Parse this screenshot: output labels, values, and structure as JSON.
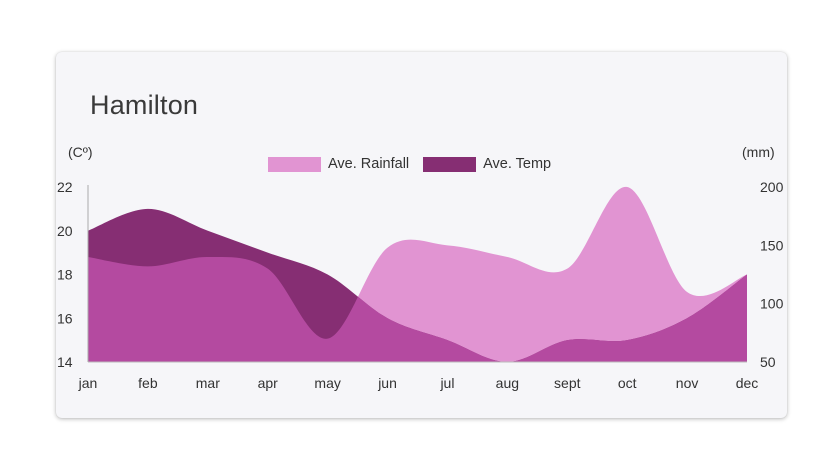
{
  "card": {
    "title": "Hamilton",
    "left_unit": "(Cº)",
    "right_unit": "(mm)"
  },
  "colors": {
    "rainfall": "#e194d2",
    "temp": "#862e73",
    "overlap": "#b44aa0",
    "card_bg": "#f6f6f9"
  },
  "chart_data": {
    "type": "area",
    "categories": [
      "jan",
      "feb",
      "mar",
      "apr",
      "may",
      "jun",
      "jul",
      "aug",
      "sept",
      "oct",
      "nov",
      "dec"
    ],
    "series": [
      {
        "name": "Ave. Rainfall",
        "axis": "right",
        "unit": "mm",
        "values": [
          140,
          132,
          140,
          130,
          70,
          148,
          150,
          140,
          130,
          200,
          110,
          125
        ]
      },
      {
        "name": "Ave. Temp",
        "axis": "left",
        "unit": "°C",
        "values": [
          20,
          21,
          20,
          19,
          18,
          16,
          15,
          14,
          15,
          15,
          16,
          18
        ]
      }
    ],
    "y_left": {
      "label": "(Cº)",
      "ticks": [
        14,
        16,
        18,
        20,
        22
      ],
      "range": [
        14,
        22
      ]
    },
    "y_right": {
      "label": "(mm)",
      "ticks": [
        50,
        100,
        150,
        200
      ],
      "range": [
        50,
        200
      ]
    },
    "legend": {
      "position": "top-center"
    },
    "grid": false
  }
}
